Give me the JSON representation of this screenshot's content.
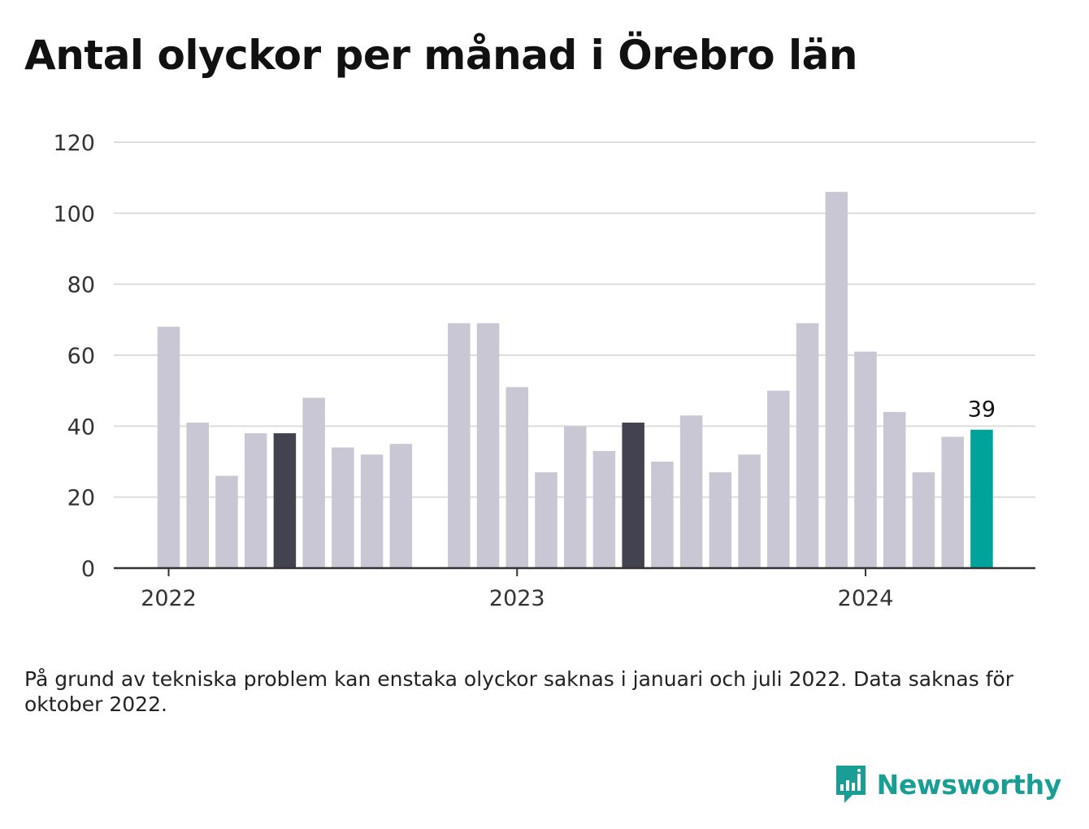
{
  "title": "Antal olyckor per månad i Örebro län",
  "footnote": "På grund av tekniska problem kan enstaka olyckor saknas i januari och juli 2022. Data saknas för oktober 2022.",
  "brand": {
    "name": "Newsworthy",
    "logo_icon": "bar-chart-speech-bubble-icon"
  },
  "colors": {
    "bar_default": "#c8c7d3",
    "bar_highlight": "#43424f",
    "bar_current": "#00a39a",
    "grid": "#dddddd",
    "axis": "#333333",
    "brand": "#199e95"
  },
  "chart_data": {
    "type": "bar",
    "ylim": [
      0,
      120
    ],
    "yticks": [
      "0",
      "20",
      "40",
      "60",
      "80",
      "100",
      "120"
    ],
    "xticks": [
      {
        "label": "2022",
        "at": "2022-01"
      },
      {
        "label": "2023",
        "at": "2023-01"
      },
      {
        "label": "2024",
        "at": "2024-01"
      }
    ],
    "grid": true,
    "categories": [
      "2022-01",
      "2022-02",
      "2022-03",
      "2022-04",
      "2022-05",
      "2022-06",
      "2022-07",
      "2022-08",
      "2022-09",
      "2022-10",
      "2022-11",
      "2022-12",
      "2023-01",
      "2023-02",
      "2023-03",
      "2023-04",
      "2023-05",
      "2023-06",
      "2023-07",
      "2023-08",
      "2023-09",
      "2023-10",
      "2023-11",
      "2023-12",
      "2024-01",
      "2024-02",
      "2024-03",
      "2024-04",
      "2024-05"
    ],
    "values": [
      68,
      41,
      26,
      38,
      38,
      48,
      34,
      32,
      35,
      null,
      69,
      69,
      51,
      27,
      40,
      33,
      41,
      30,
      43,
      27,
      32,
      50,
      69,
      106,
      61,
      44,
      27,
      37,
      39
    ],
    "highlight": [
      "2022-05",
      "2023-05"
    ],
    "current": "2024-05",
    "value_label": {
      "category": "2024-05",
      "text": "39"
    }
  }
}
